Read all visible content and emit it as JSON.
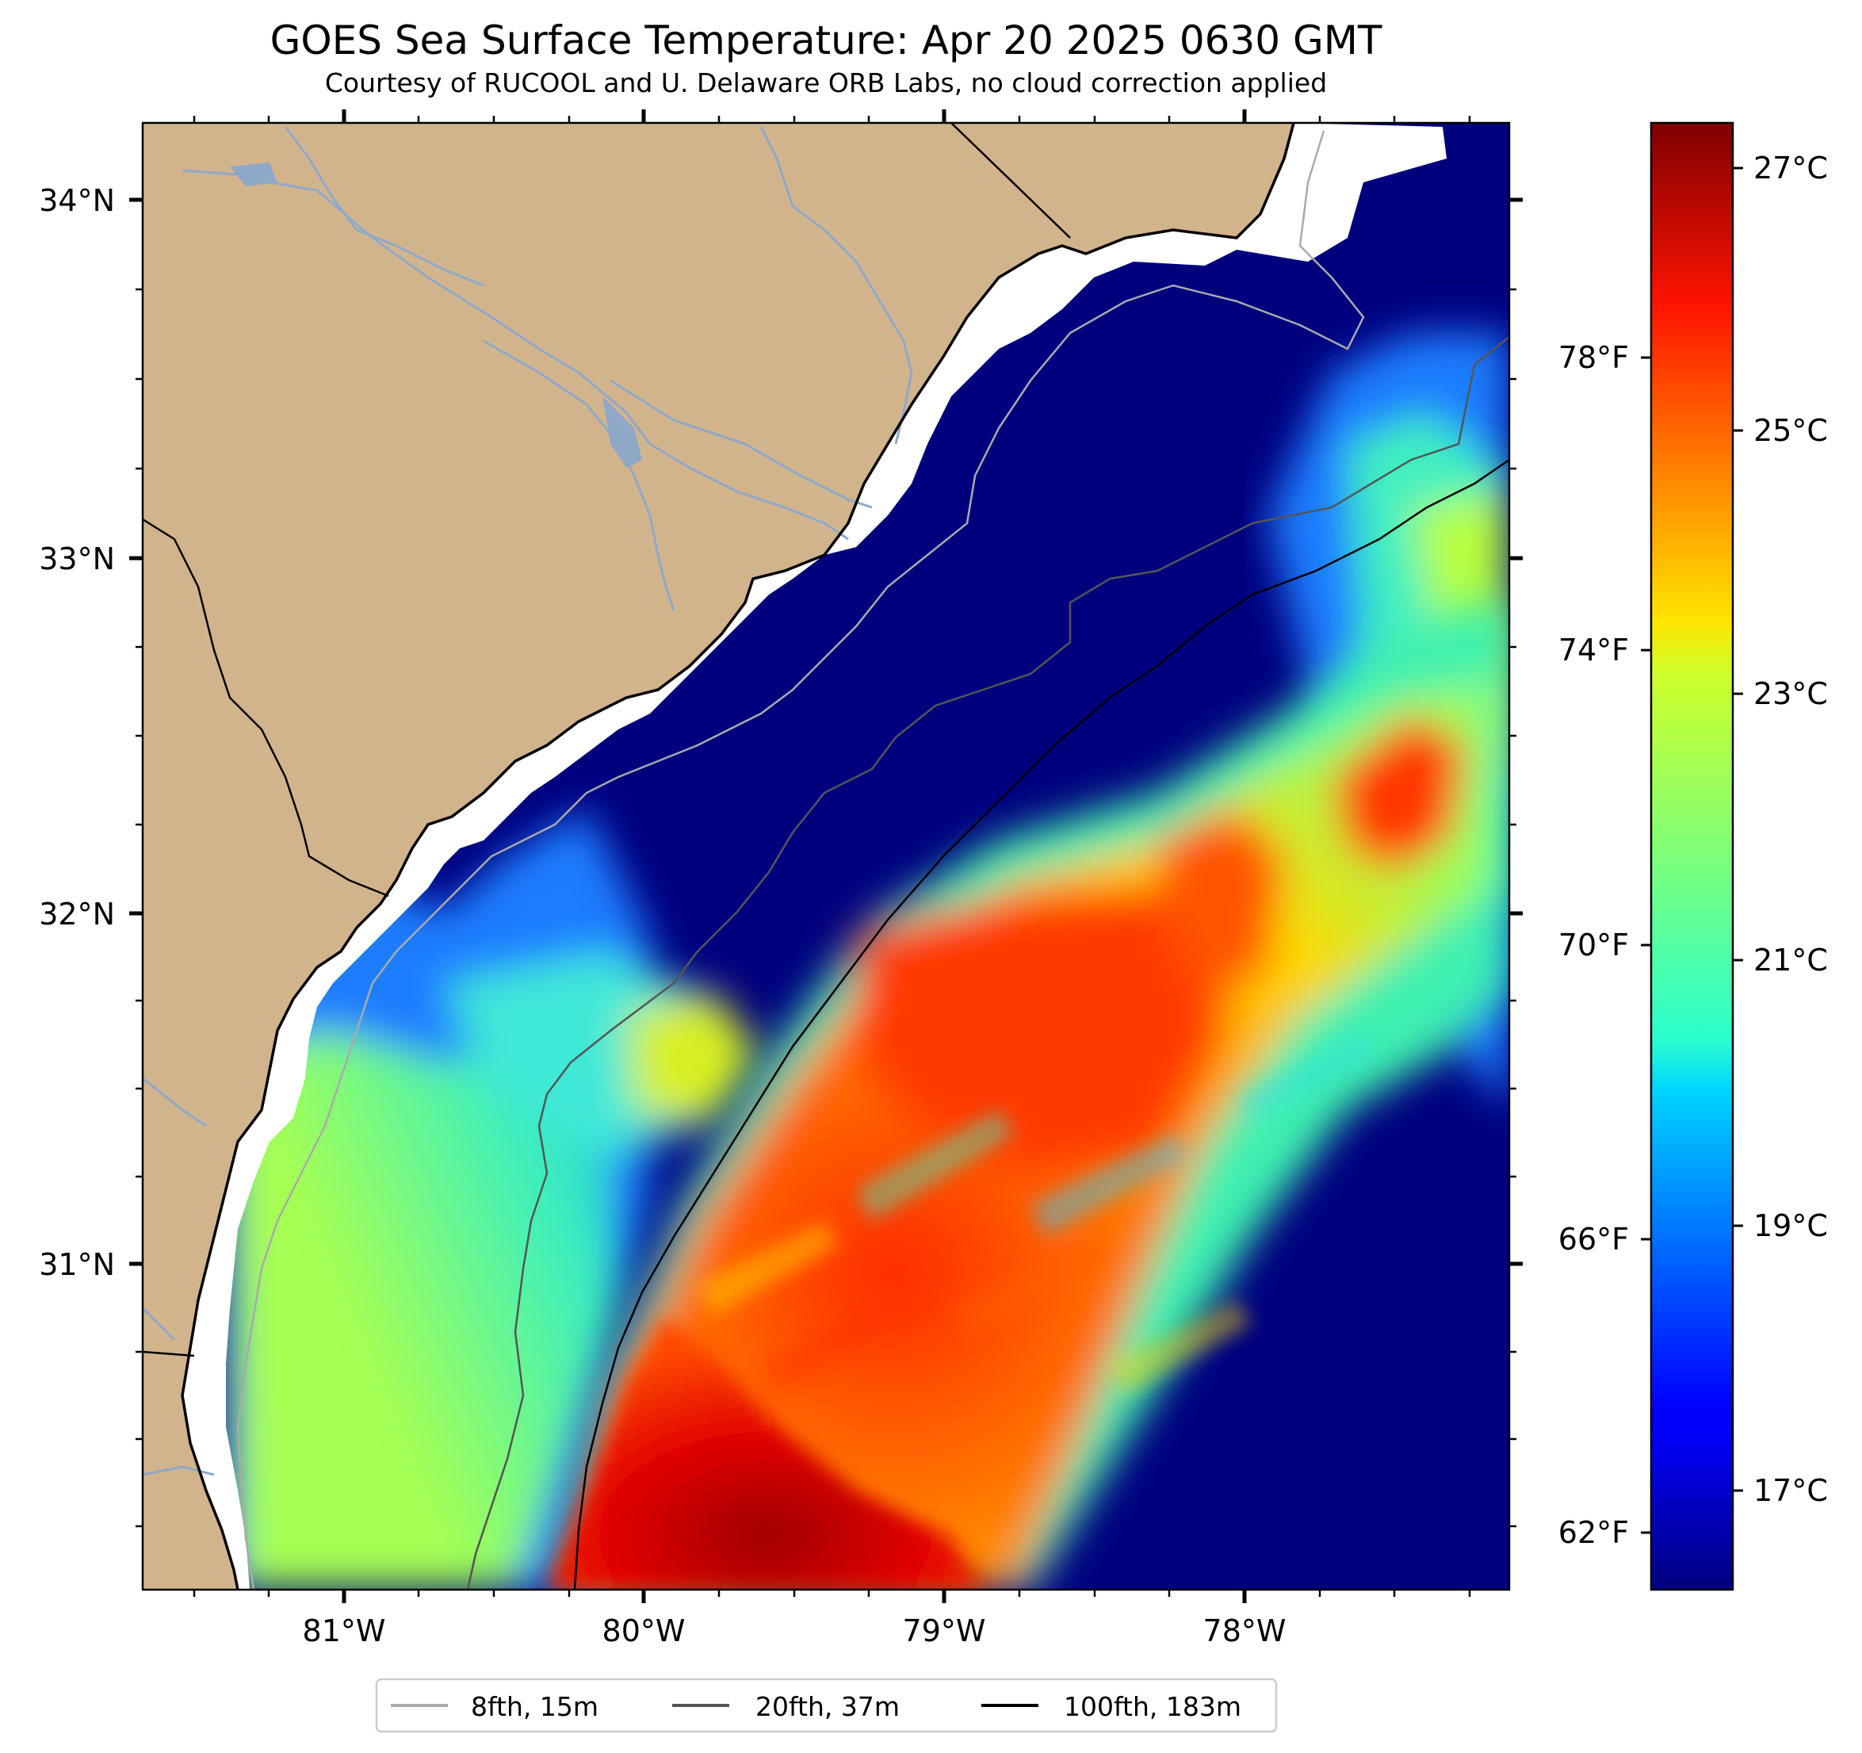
{
  "header": {
    "title": "GOES Sea Surface Temperature: Apr 20 2025 0630 GMT",
    "subtitle": "Courtesy of RUCOOL and U. Delaware ORB Labs, no cloud correction applied"
  },
  "map": {
    "lat_labels": [
      "34°N",
      "33°N",
      "32°N",
      "31°N"
    ],
    "lon_labels": [
      "81°W",
      "80°W",
      "79°W",
      "78°W"
    ],
    "colors": {
      "land": "#d2b48c",
      "water_cold": "#00007f",
      "coastline": "#000000",
      "river": "#8fa8c8",
      "isobath_8fth": "#aaaaaa",
      "isobath_20fth": "#555555",
      "isobath_100fth": "#000000"
    }
  },
  "colorbar": {
    "celsius_labels": [
      "27°C",
      "25°C",
      "23°C",
      "21°C",
      "19°C",
      "17°C"
    ],
    "fahrenheit_labels": [
      "78°F",
      "74°F",
      "70°F",
      "66°F",
      "62°F"
    ],
    "colormap": "jet",
    "min_c": 16.1,
    "max_c": 27.4
  },
  "legend": {
    "items": [
      {
        "label": "8fth, 15m",
        "color": "#aaaaaa"
      },
      {
        "label": "20fth, 37m",
        "color": "#555555"
      },
      {
        "label": "100fth, 183m",
        "color": "#000000"
      }
    ]
  }
}
